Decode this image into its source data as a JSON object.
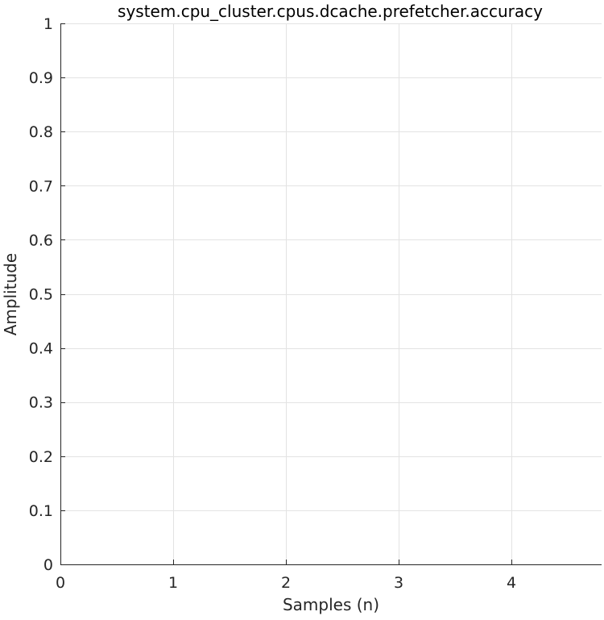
{
  "chart_data": {
    "type": "line",
    "title": "system.cpu_cluster.cpus.dcache.prefetcher.accuracy",
    "xlabel": "Samples (n)",
    "ylabel": "Amplitude",
    "xlim": [
      0,
      4.8
    ],
    "ylim": [
      0,
      1
    ],
    "x_ticks": [
      0,
      1,
      2,
      3,
      4
    ],
    "y_ticks": [
      0,
      0.1,
      0.2,
      0.3,
      0.4,
      0.5,
      0.6,
      0.7,
      0.8,
      0.9,
      1
    ],
    "x_tick_labels": [
      "0",
      "1",
      "2",
      "3",
      "4"
    ],
    "y_tick_labels": [
      "0",
      "0.1",
      "0.2",
      "0.3",
      "0.4",
      "0.5",
      "0.6",
      "0.7",
      "0.8",
      "0.9",
      "1"
    ],
    "grid": true,
    "series": [],
    "colors": {
      "grid": "#e3e3e3",
      "axis": "#262626",
      "text": "#262626"
    }
  }
}
